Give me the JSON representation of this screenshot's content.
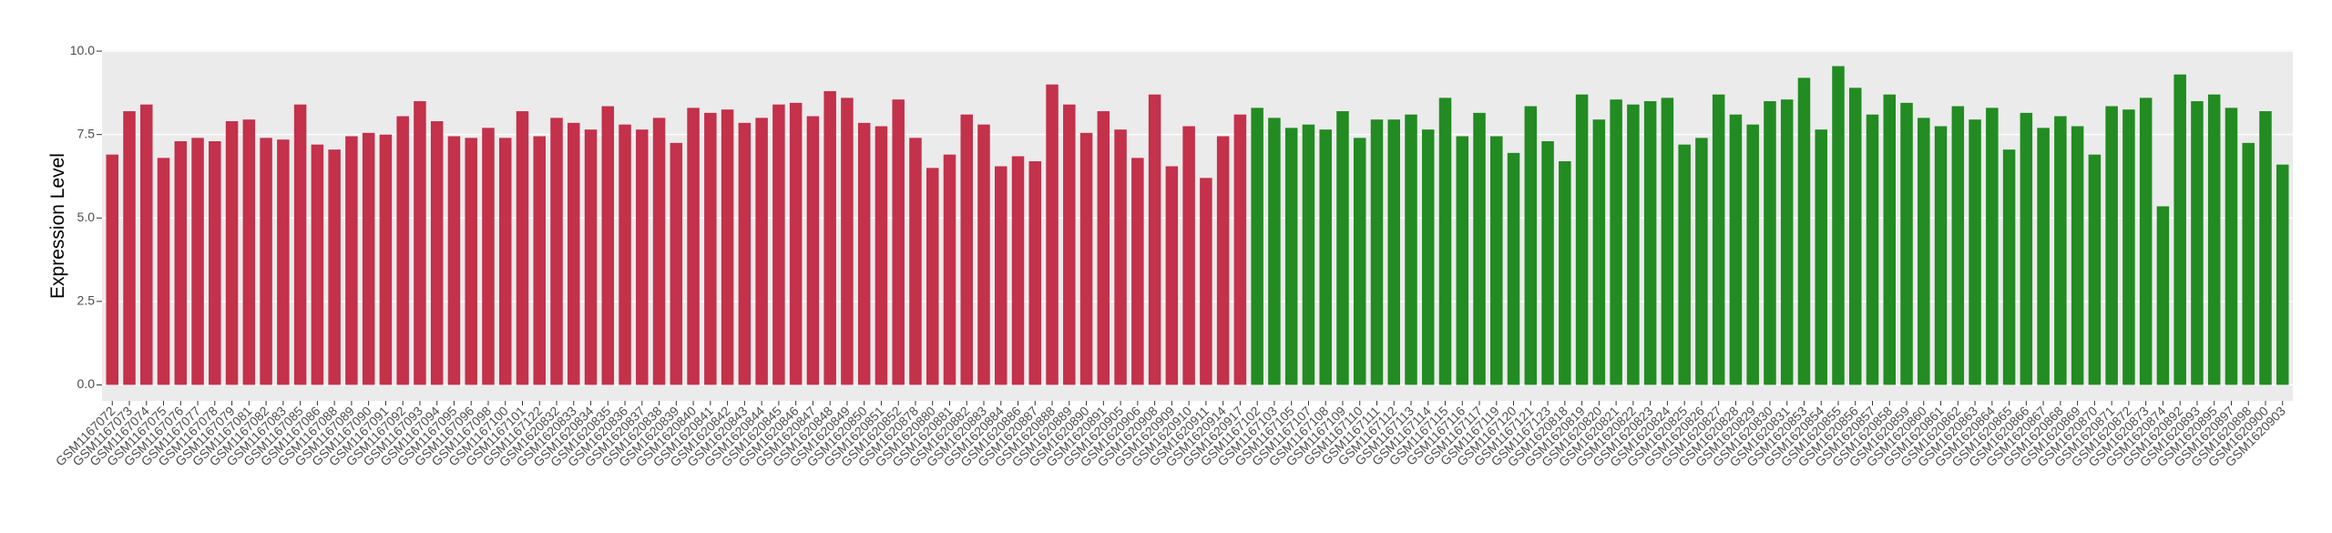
{
  "chart_data": {
    "type": "bar",
    "y_label": "Expression Level",
    "ylim": [
      -0.48,
      10.03
    ],
    "yticks": [
      {
        "value": 0,
        "label": "0.0"
      },
      2.5,
      {
        "value": 5,
        "label": "5.0"
      },
      7.5,
      {
        "value": 10,
        "label": "10.0"
      }
    ],
    "grid": true,
    "groups": [
      {
        "color": "#c3314b",
        "categories": [
          "GSM1167072",
          "GSM1167073",
          "GSM1167074",
          "GSM1167075",
          "GSM1167076",
          "GSM1167077",
          "GSM1167078",
          "GSM1167079",
          "GSM1167081",
          "GSM1167082",
          "GSM1167083",
          "GSM1167085",
          "GSM1167086",
          "GSM1167088",
          "GSM1167089",
          "GSM1167090",
          "GSM1167091",
          "GSM1167092",
          "GSM1167093",
          "GSM1167094",
          "GSM1167095",
          "GSM1167096",
          "GSM1167098",
          "GSM1167100",
          "GSM1167101",
          "GSM1167122",
          "GSM1620832",
          "GSM1620833",
          "GSM1620834",
          "GSM1620835",
          "GSM1620836",
          "GSM1620837",
          "GSM1620838",
          "GSM1620839",
          "GSM1620840",
          "GSM1620841",
          "GSM1620842",
          "GSM1620843",
          "GSM1620844",
          "GSM1620845",
          "GSM1620846",
          "GSM1620847",
          "GSM1620848",
          "GSM1620849",
          "GSM1620850",
          "GSM1620851",
          "GSM1620852",
          "GSM1620878",
          "GSM1620880",
          "GSM1620881",
          "GSM1620882",
          "GSM1620883",
          "GSM1620884",
          "GSM1620886",
          "GSM1620887",
          "GSM1620888",
          "GSM1620889",
          "GSM1620890",
          "GSM1620891",
          "GSM1620905",
          "GSM1620906",
          "GSM1620908",
          "GSM1620909",
          "GSM1620910",
          "GSM1620911",
          "GSM1620914",
          "GSM1620917"
        ],
        "values": [
          6.9,
          8.2,
          8.4,
          6.8,
          7.3,
          7.4,
          7.3,
          7.9,
          7.95,
          7.4,
          7.35,
          8.4,
          7.2,
          7.05,
          7.45,
          7.55,
          7.5,
          8.05,
          8.5,
          7.9,
          7.45,
          7.4,
          7.7,
          7.4,
          8.2,
          7.45,
          8.0,
          7.85,
          7.65,
          8.35,
          7.8,
          7.65,
          8.0,
          7.25,
          8.3,
          8.15,
          8.25,
          7.85,
          8.0,
          8.4,
          8.45,
          8.05,
          8.8,
          8.6,
          7.85,
          7.75,
          8.55,
          7.4,
          6.5,
          6.9,
          8.1,
          7.8,
          6.55,
          6.85,
          6.7,
          9.0,
          8.4,
          7.55,
          8.2,
          7.65,
          6.8,
          8.7,
          6.55,
          7.75,
          6.2,
          7.45,
          8.1
        ]
      },
      {
        "color": "#228b22",
        "categories": [
          "GSM1167102",
          "GSM1167103",
          "GSM1167105",
          "GSM1167107",
          "GSM1167108",
          "GSM1167109",
          "GSM1167110",
          "GSM1167111",
          "GSM1167112",
          "GSM1167113",
          "GSM1167114",
          "GSM1167115",
          "GSM1167116",
          "GSM1167117",
          "GSM1167119",
          "GSM1167120",
          "GSM1167121",
          "GSM1167123",
          "GSM1620818",
          "GSM1620819",
          "GSM1620820",
          "GSM1620821",
          "GSM1620822",
          "GSM1620823",
          "GSM1620824",
          "GSM1620825",
          "GSM1620826",
          "GSM1620827",
          "GSM1620828",
          "GSM1620829",
          "GSM1620830",
          "GSM1620831",
          "GSM1620853",
          "GSM1620854",
          "GSM1620855",
          "GSM1620856",
          "GSM1620857",
          "GSM1620858",
          "GSM1620859",
          "GSM1620860",
          "GSM1620861",
          "GSM1620862",
          "GSM1620863",
          "GSM1620864",
          "GSM1620865",
          "GSM1620866",
          "GSM1620867",
          "GSM1620868",
          "GSM1620869",
          "GSM1620870",
          "GSM1620871",
          "GSM1620872",
          "GSM1620873",
          "GSM1620874",
          "GSM1620892",
          "GSM1620893",
          "GSM1620895",
          "GSM1620897",
          "GSM1620898",
          "GSM1620900",
          "GSM1620903"
        ],
        "values": [
          8.3,
          8.0,
          7.7,
          7.8,
          7.65,
          8.2,
          7.4,
          7.95,
          7.95,
          8.1,
          7.65,
          8.6,
          7.45,
          8.15,
          7.45,
          6.95,
          8.35,
          7.3,
          6.7,
          8.7,
          7.95,
          8.55,
          8.4,
          8.5,
          8.6,
          7.2,
          7.4,
          8.7,
          8.1,
          7.8,
          8.5,
          8.55,
          9.2,
          7.65,
          9.55,
          8.9,
          8.1,
          8.7,
          8.45,
          8.0,
          7.75,
          8.35,
          7.95,
          8.3,
          7.05,
          8.15,
          7.7,
          8.05,
          7.75,
          6.9,
          8.35,
          8.25,
          8.6,
          5.35,
          9.3,
          8.5,
          8.7,
          8.3,
          7.25,
          8.2,
          6.6
        ]
      }
    ]
  }
}
